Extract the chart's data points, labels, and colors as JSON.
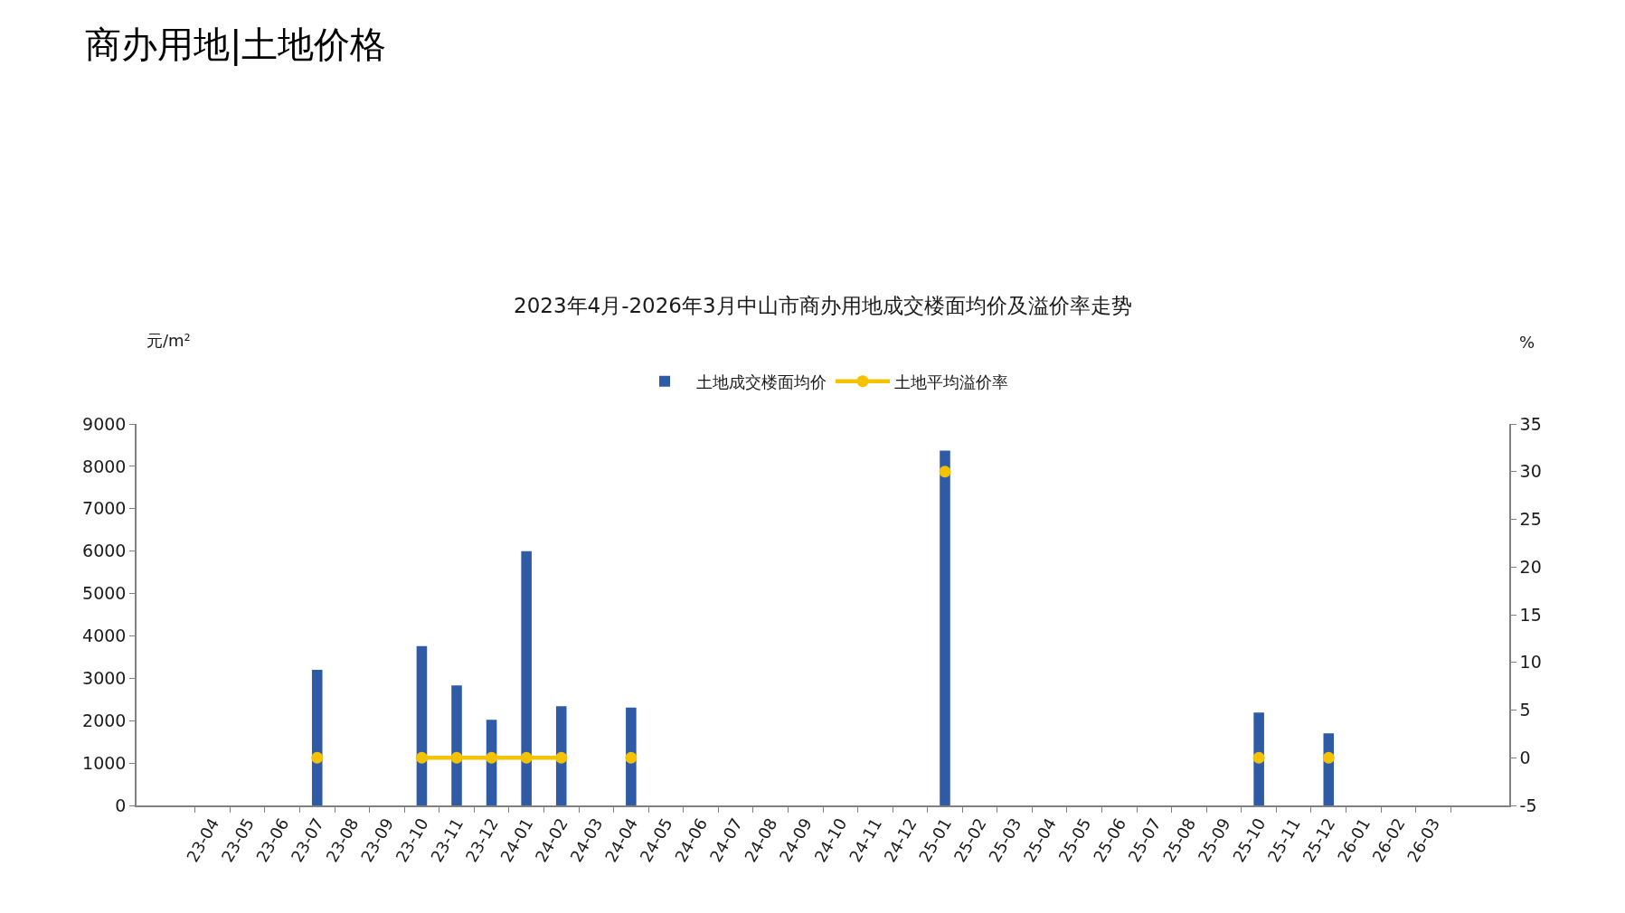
{
  "chart_data": {
    "type": "bar",
    "title": "商办用地|土地价格",
    "subtitle": "2023年4月-2026年3月中山市商办用地成交楼面均价及溢价率走势",
    "ylabel": "元/m²",
    "y2label": "%",
    "categories": [
      "23-04",
      "23-05",
      "23-06",
      "23-07",
      "23-08",
      "23-09",
      "23-10",
      "23-11",
      "23-12",
      "24-01",
      "24-02",
      "24-03",
      "24-04",
      "24-05",
      "24-06",
      "24-07",
      "24-08",
      "24-09",
      "24-10",
      "24-11",
      "24-12",
      "25-01",
      "25-02",
      "25-03",
      "25-04",
      "25-05",
      "25-06",
      "25-07",
      "25-08",
      "25-09",
      "25-10",
      "25-11",
      "25-12",
      "26-01",
      "26-02",
      "26-03"
    ],
    "series": [
      {
        "name": "土地成交楼面均价",
        "color": "#2f5aa6",
        "values": [
          null,
          null,
          null,
          3200,
          null,
          null,
          3760,
          2830,
          2020,
          6000,
          2340,
          null,
          2310,
          null,
          null,
          null,
          null,
          null,
          null,
          null,
          null,
          8370,
          null,
          null,
          null,
          null,
          null,
          null,
          null,
          null,
          2190,
          null,
          1700,
          null,
          null,
          null
        ]
      },
      {
        "name": "土地平均溢价率",
        "type": "line",
        "axis": "y2",
        "color": "#f5c200",
        "values": [
          null,
          null,
          null,
          0,
          null,
          null,
          0,
          0,
          0,
          0,
          0,
          null,
          0,
          null,
          null,
          null,
          null,
          null,
          null,
          null,
          null,
          30,
          null,
          null,
          null,
          null,
          null,
          null,
          null,
          null,
          0,
          null,
          0,
          null,
          null,
          null
        ]
      }
    ],
    "ylim": [
      0,
      9000
    ],
    "yticks": [
      0,
      1000,
      2000,
      3000,
      4000,
      5000,
      6000,
      7000,
      8000,
      9000
    ],
    "y2lim": [
      -5,
      35
    ],
    "y2ticks": [
      -5,
      0,
      5,
      10,
      15,
      20,
      25,
      30,
      35
    ],
    "grid": false,
    "legend": "top",
    "marker": "circle",
    "line_style": "solid"
  }
}
